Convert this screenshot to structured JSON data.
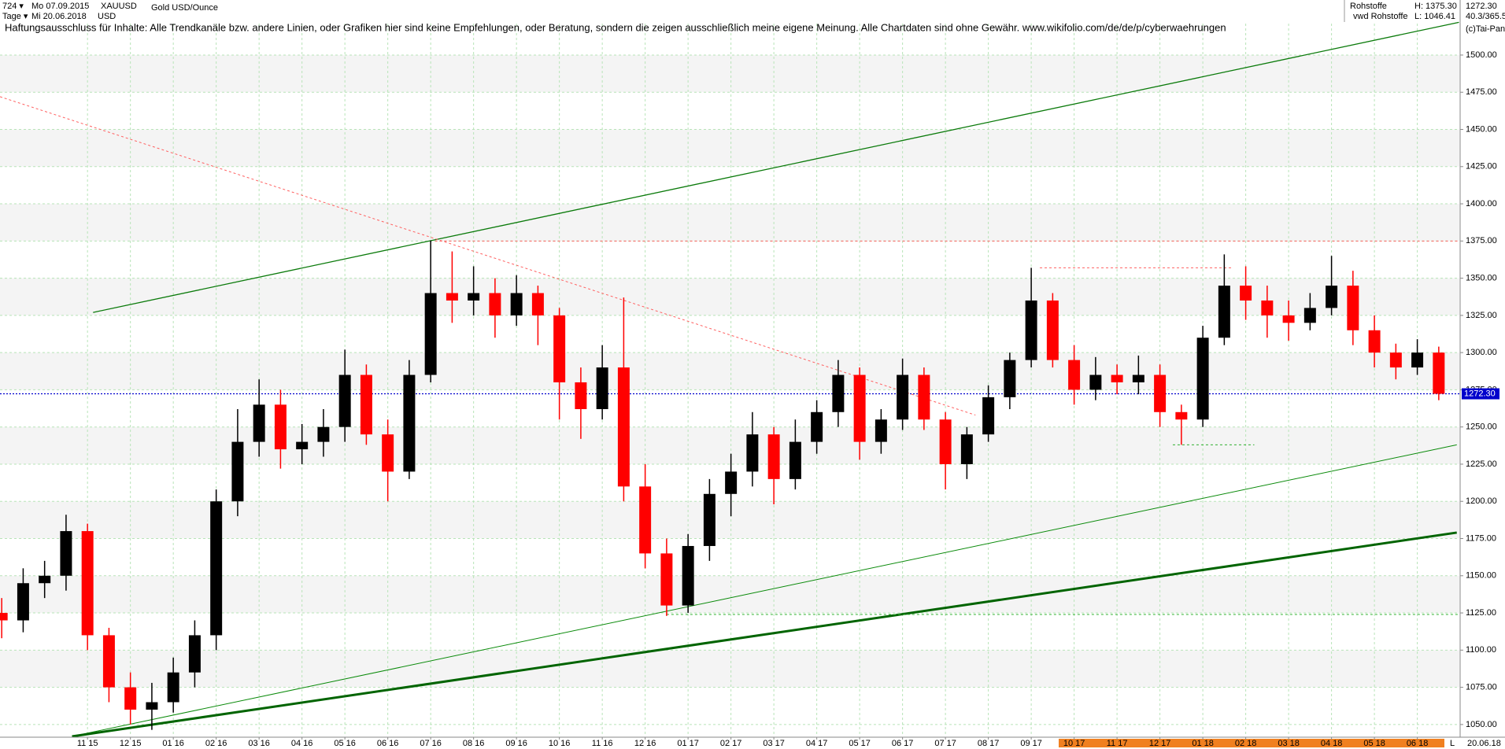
{
  "header": {
    "period": "724 ▾",
    "start": "Mo 07.09.2015",
    "symbol": "XAUUSD",
    "name": "Gold USD/Ounce",
    "unit_label": "Tage ▾",
    "end": "Mi 20.06.2018",
    "currency": "USD",
    "group": "Rohstoffe",
    "high": "H: 1375.30",
    "source": "vwd Rohstoffe",
    "low": "L: 1046.41",
    "last": "1272.30",
    "range": "40.3/365.5",
    "copyright": "(c)Tai-Pan",
    "disclaimer": "Haftungsausschluss für Inhalte: Alle Trendkanäle bzw. andere Linien, oder Grafiken hier sind keine Empfehlungen, oder Beratung, sondern die zeigen ausschließlich meine eigene Meinung. Alle Chartdaten sind ohne Gewähr.  www.wikifolio.com/de/de/p/cyberwaehrungen",
    "corner_mark": "L",
    "end_date": "20.06.18"
  },
  "chart_data": {
    "type": "candlestick",
    "x": [
      -2,
      -1.5,
      -1,
      -0.5,
      0,
      0.5,
      1,
      1.5,
      2,
      2.5,
      3,
      3.5,
      4,
      4.5,
      5,
      5.5,
      6,
      6.5,
      7,
      7.5,
      8,
      8.5,
      9,
      9.5,
      10,
      10.5,
      11,
      11.5,
      12,
      12.5,
      13,
      13.5,
      14,
      14.5,
      15,
      15.5,
      16,
      16.5,
      17,
      17.5,
      18,
      18.5,
      19,
      19.5,
      20,
      20.5,
      21,
      21.5,
      22,
      22.5,
      23,
      23.5,
      24,
      24.5,
      25,
      25.5,
      26,
      26.5,
      27,
      27.5,
      28,
      28.5,
      29,
      29.5,
      30,
      30.5,
      31,
      31.5
    ],
    "open": [
      1125,
      1120,
      1145,
      1150,
      1180,
      1110,
      1075,
      1060,
      1065,
      1085,
      1110,
      1200,
      1240,
      1265,
      1235,
      1240,
      1250,
      1285,
      1245,
      1220,
      1285,
      1340,
      1335,
      1340,
      1325,
      1340,
      1325,
      1280,
      1262,
      1290,
      1210,
      1165,
      1130,
      1170,
      1205,
      1220,
      1245,
      1215,
      1240,
      1260,
      1285,
      1240,
      1255,
      1285,
      1255,
      1225,
      1245,
      1270,
      1295,
      1335,
      1295,
      1275,
      1285,
      1280,
      1285,
      1260,
      1255,
      1310,
      1345,
      1335,
      1325,
      1320,
      1330,
      1345,
      1315,
      1300,
      1290,
      1300
    ],
    "high": [
      1135,
      1155,
      1160,
      1191,
      1185,
      1115,
      1085,
      1078,
      1095,
      1120,
      1208,
      1262,
      1282,
      1275,
      1252,
      1262,
      1302,
      1292,
      1255,
      1295,
      1375.3,
      1368,
      1358,
      1350,
      1352,
      1345,
      1330,
      1290,
      1305,
      1337,
      1225,
      1175,
      1178,
      1215,
      1232,
      1260,
      1250,
      1255,
      1268,
      1295,
      1290,
      1262,
      1296,
      1290,
      1260,
      1250,
      1278,
      1300,
      1357,
      1340,
      1305,
      1297,
      1292,
      1298,
      1292,
      1265,
      1318,
      1366,
      1358,
      1345,
      1335,
      1340,
      1365,
      1355,
      1325,
      1306,
      1309,
      1304
    ],
    "low": [
      1108,
      1112,
      1135,
      1140,
      1100,
      1065,
      1050,
      1046.4,
      1058,
      1075,
      1100,
      1190,
      1230,
      1222,
      1225,
      1230,
      1240,
      1238,
      1200,
      1215,
      1280,
      1320,
      1325,
      1310,
      1318,
      1305,
      1255,
      1242,
      1255,
      1200,
      1155,
      1123,
      1125,
      1160,
      1190,
      1210,
      1198,
      1208,
      1232,
      1250,
      1228,
      1232,
      1248,
      1248,
      1208,
      1215,
      1240,
      1262,
      1290,
      1290,
      1265,
      1268,
      1272,
      1272,
      1250,
      1238,
      1250,
      1305,
      1322,
      1310,
      1308,
      1315,
      1325,
      1305,
      1290,
      1282,
      1285,
      1268
    ],
    "close": [
      1120,
      1145,
      1150,
      1180,
      1110,
      1075,
      1060,
      1065,
      1085,
      1110,
      1200,
      1240,
      1265,
      1235,
      1240,
      1250,
      1285,
      1245,
      1220,
      1285,
      1340,
      1335,
      1340,
      1325,
      1340,
      1325,
      1280,
      1262,
      1290,
      1210,
      1165,
      1130,
      1170,
      1205,
      1220,
      1245,
      1215,
      1240,
      1260,
      1285,
      1240,
      1255,
      1285,
      1255,
      1225,
      1245,
      1270,
      1295,
      1335,
      1295,
      1275,
      1285,
      1280,
      1285,
      1260,
      1255,
      1310,
      1345,
      1335,
      1325,
      1320,
      1330,
      1345,
      1315,
      1300,
      1290,
      1300,
      1272.3
    ],
    "up_color": "#000000",
    "down_color": "#ff0000",
    "xlim": [
      -2.04,
      31.98
    ],
    "ylim": [
      1042,
      1537
    ],
    "xticks": [
      {
        "value": 0,
        "label": "11 15"
      },
      {
        "value": 1,
        "label": "12 15"
      },
      {
        "value": 2,
        "label": "01 16"
      },
      {
        "value": 3,
        "label": "02 16"
      },
      {
        "value": 4,
        "label": "03 16"
      },
      {
        "value": 5,
        "label": "04 16"
      },
      {
        "value": 6,
        "label": "05 16"
      },
      {
        "value": 7,
        "label": "06 16"
      },
      {
        "value": 8,
        "label": "07 16"
      },
      {
        "value": 9,
        "label": "08 16"
      },
      {
        "value": 10,
        "label": "09 16"
      },
      {
        "value": 11,
        "label": "10 16"
      },
      {
        "value": 12,
        "label": "11 16"
      },
      {
        "value": 13,
        "label": "12 16"
      },
      {
        "value": 14,
        "label": "01 17"
      },
      {
        "value": 15,
        "label": "02 17"
      },
      {
        "value": 16,
        "label": "03 17"
      },
      {
        "value": 17,
        "label": "04 17"
      },
      {
        "value": 18,
        "label": "05 17"
      },
      {
        "value": 19,
        "label": "06 17"
      },
      {
        "value": 20,
        "label": "07 17"
      },
      {
        "value": 21,
        "label": "08 17"
      },
      {
        "value": 22,
        "label": "09 17"
      },
      {
        "value": 23,
        "label": "10 17"
      },
      {
        "value": 24,
        "label": "11 17"
      },
      {
        "value": 25,
        "label": "12 17"
      },
      {
        "value": 26,
        "label": "01 18"
      },
      {
        "value": 27,
        "label": "02 18"
      },
      {
        "value": 28,
        "label": "03 18"
      },
      {
        "value": 29,
        "label": "04 18"
      },
      {
        "value": 30,
        "label": "05 18"
      },
      {
        "value": 31,
        "label": "06 18"
      }
    ],
    "yticks": [
      {
        "value": 1050,
        "label": "1050.00"
      },
      {
        "value": 1075,
        "label": "1075.00"
      },
      {
        "value": 1100,
        "label": "1100.00"
      },
      {
        "value": 1125,
        "label": "1125.00"
      },
      {
        "value": 1150,
        "label": "1150.00"
      },
      {
        "value": 1175,
        "label": "1175.00"
      },
      {
        "value": 1200,
        "label": "1200.00"
      },
      {
        "value": 1225,
        "label": "1225.00"
      },
      {
        "value": 1250,
        "label": "1250.00"
      },
      {
        "value": 1275,
        "label": "1275.00"
      },
      {
        "value": 1300,
        "label": "1300.00"
      },
      {
        "value": 1325,
        "label": "1325.00"
      },
      {
        "value": 1350,
        "label": "1350.00"
      },
      {
        "value": 1375,
        "label": "1375.00"
      },
      {
        "value": 1400,
        "label": "1400.00"
      },
      {
        "value": 1425,
        "label": "1425.00"
      },
      {
        "value": 1450,
        "label": "1450.00"
      },
      {
        "value": 1475,
        "label": "1475.00"
      },
      {
        "value": 1500,
        "label": "1500.00"
      }
    ],
    "grid": true,
    "lines": [
      {
        "x": [
          0.13,
          31.97
        ],
        "y": [
          1327,
          1522
        ],
        "color": "#0a7a0a",
        "style": "solid",
        "width": 1.3
      },
      {
        "x": [
          -0.36,
          31.92
        ],
        "y": [
          1042,
          1238
        ],
        "color": "#0a8a0a",
        "style": "solid",
        "width": 1
      },
      {
        "x": [
          -0.36,
          31.92
        ],
        "y": [
          1042,
          1179
        ],
        "color": "#006400",
        "style": "solid",
        "width": 3
      },
      {
        "x": [
          -2.04,
          20.7
        ],
        "y": [
          1472,
          1258
        ],
        "color": "#ff6060",
        "style": "dotted",
        "width": 1
      },
      {
        "x": [
          8.1,
          31.98
        ],
        "y": [
          1375,
          1375
        ],
        "color": "#ff6060",
        "style": "dotted",
        "width": 1
      },
      {
        "x": [
          22.2,
          26.7
        ],
        "y": [
          1357,
          1357
        ],
        "color": "#ff6060",
        "style": "dotted",
        "width": 1
      },
      {
        "x": [
          13.5,
          31.98
        ],
        "y": [
          1124,
          1124
        ],
        "color": "#30b030",
        "style": "dotted",
        "width": 1
      },
      {
        "x": [
          25.3,
          27.2
        ],
        "y": [
          1238,
          1238
        ],
        "color": "#30b030",
        "style": "dotted",
        "width": 1
      }
    ],
    "last_price": {
      "value": 1272.3,
      "label": "1272.30",
      "color": "#0000cc"
    }
  }
}
